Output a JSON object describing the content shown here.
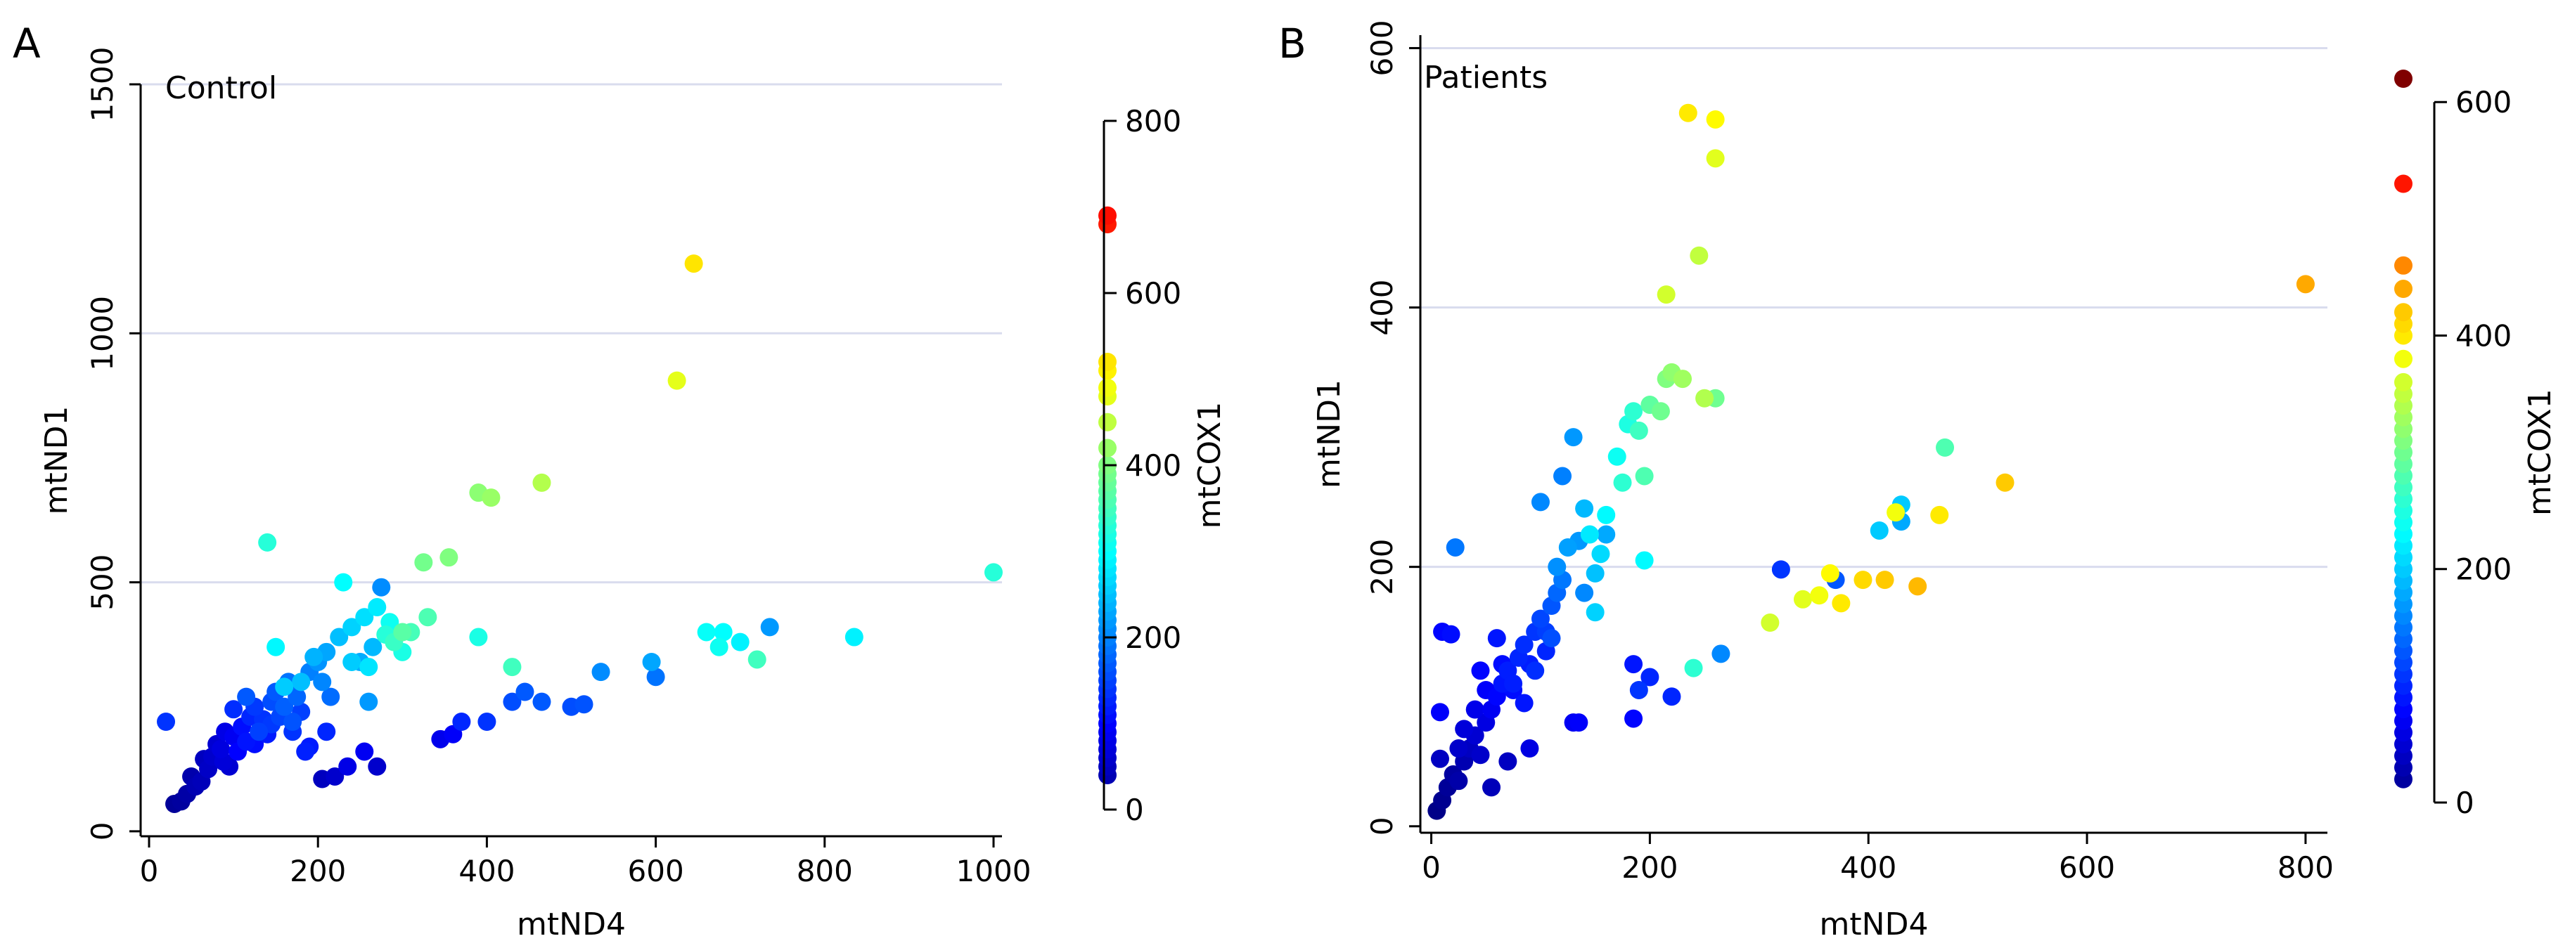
{
  "chart_data": [
    {
      "type": "scatter",
      "panel_label": "A",
      "title": "Control",
      "xlabel": "mtND4",
      "ylabel": "mtND1",
      "xlim": [
        -10,
        1010
      ],
      "ylim": [
        -10,
        1500
      ],
      "xticks": [
        0,
        200,
        400,
        600,
        800,
        1000
      ],
      "yticks": [
        0,
        500,
        1000,
        1500
      ],
      "grid_y": true,
      "colorbar": {
        "label": "mtCOX1",
        "ticks": [
          0,
          200,
          400,
          600,
          800
        ],
        "range": [
          0,
          800
        ],
        "colormap": "jet"
      },
      "points": [
        {
          "x": 30,
          "y": 55,
          "c": 20
        },
        {
          "x": 38,
          "y": 60,
          "c": 25
        },
        {
          "x": 45,
          "y": 75,
          "c": 30
        },
        {
          "x": 55,
          "y": 90,
          "c": 40
        },
        {
          "x": 50,
          "y": 110,
          "c": 35
        },
        {
          "x": 62,
          "y": 100,
          "c": 45
        },
        {
          "x": 70,
          "y": 125,
          "c": 55
        },
        {
          "x": 75,
          "y": 150,
          "c": 60
        },
        {
          "x": 80,
          "y": 175,
          "c": 65
        },
        {
          "x": 88,
          "y": 140,
          "c": 70
        },
        {
          "x": 90,
          "y": 200,
          "c": 80
        },
        {
          "x": 100,
          "y": 190,
          "c": 90
        },
        {
          "x": 105,
          "y": 160,
          "c": 100
        },
        {
          "x": 110,
          "y": 210,
          "c": 110
        },
        {
          "x": 115,
          "y": 180,
          "c": 115
        },
        {
          "x": 120,
          "y": 230,
          "c": 130
        },
        {
          "x": 125,
          "y": 250,
          "c": 145
        },
        {
          "x": 130,
          "y": 200,
          "c": 150
        },
        {
          "x": 135,
          "y": 225,
          "c": 140
        },
        {
          "x": 140,
          "y": 195,
          "c": 120
        },
        {
          "x": 145,
          "y": 260,
          "c": 160
        },
        {
          "x": 150,
          "y": 280,
          "c": 170
        },
        {
          "x": 155,
          "y": 230,
          "c": 155
        },
        {
          "x": 160,
          "y": 250,
          "c": 175
        },
        {
          "x": 165,
          "y": 300,
          "c": 190
        },
        {
          "x": 170,
          "y": 220,
          "c": 165
        },
        {
          "x": 175,
          "y": 270,
          "c": 180
        },
        {
          "x": 180,
          "y": 240,
          "c": 150
        },
        {
          "x": 185,
          "y": 160,
          "c": 125
        },
        {
          "x": 190,
          "y": 320,
          "c": 200
        },
        {
          "x": 200,
          "y": 340,
          "c": 215
        },
        {
          "x": 205,
          "y": 300,
          "c": 205
        },
        {
          "x": 210,
          "y": 360,
          "c": 230
        },
        {
          "x": 215,
          "y": 270,
          "c": 185
        },
        {
          "x": 225,
          "y": 390,
          "c": 250
        },
        {
          "x": 230,
          "y": 500,
          "c": 300
        },
        {
          "x": 240,
          "y": 410,
          "c": 265
        },
        {
          "x": 250,
          "y": 340,
          "c": 235
        },
        {
          "x": 255,
          "y": 430,
          "c": 275
        },
        {
          "x": 260,
          "y": 260,
          "c": 220
        },
        {
          "x": 265,
          "y": 370,
          "c": 245
        },
        {
          "x": 270,
          "y": 450,
          "c": 285
        },
        {
          "x": 275,
          "y": 490,
          "c": 210
        },
        {
          "x": 280,
          "y": 395,
          "c": 330
        },
        {
          "x": 290,
          "y": 380,
          "c": 345
        },
        {
          "x": 300,
          "y": 360,
          "c": 320
        },
        {
          "x": 310,
          "y": 400,
          "c": 355
        },
        {
          "x": 325,
          "y": 540,
          "c": 390
        },
        {
          "x": 330,
          "y": 430,
          "c": 360
        },
        {
          "x": 355,
          "y": 550,
          "c": 400
        },
        {
          "x": 140,
          "y": 580,
          "c": 330
        },
        {
          "x": 150,
          "y": 370,
          "c": 295
        },
        {
          "x": 20,
          "y": 220,
          "c": 140
        },
        {
          "x": 210,
          "y": 200,
          "c": 130
        },
        {
          "x": 190,
          "y": 170,
          "c": 120
        },
        {
          "x": 220,
          "y": 110,
          "c": 60
        },
        {
          "x": 235,
          "y": 130,
          "c": 80
        },
        {
          "x": 255,
          "y": 160,
          "c": 90
        },
        {
          "x": 270,
          "y": 130,
          "c": 60
        },
        {
          "x": 205,
          "y": 105,
          "c": 50
        },
        {
          "x": 345,
          "y": 185,
          "c": 85
        },
        {
          "x": 360,
          "y": 195,
          "c": 95
        },
        {
          "x": 370,
          "y": 220,
          "c": 130
        },
        {
          "x": 400,
          "y": 220,
          "c": 140
        },
        {
          "x": 430,
          "y": 260,
          "c": 160
        },
        {
          "x": 445,
          "y": 280,
          "c": 170
        },
        {
          "x": 465,
          "y": 260,
          "c": 170
        },
        {
          "x": 500,
          "y": 250,
          "c": 160
        },
        {
          "x": 515,
          "y": 255,
          "c": 165
        },
        {
          "x": 535,
          "y": 320,
          "c": 210
        },
        {
          "x": 595,
          "y": 340,
          "c": 230
        },
        {
          "x": 600,
          "y": 310,
          "c": 190
        },
        {
          "x": 660,
          "y": 400,
          "c": 305
        },
        {
          "x": 675,
          "y": 370,
          "c": 310
        },
        {
          "x": 680,
          "y": 400,
          "c": 300
        },
        {
          "x": 700,
          "y": 380,
          "c": 290
        },
        {
          "x": 720,
          "y": 345,
          "c": 350
        },
        {
          "x": 735,
          "y": 410,
          "c": 220
        },
        {
          "x": 835,
          "y": 390,
          "c": 290
        },
        {
          "x": 1000,
          "y": 520,
          "c": 330
        },
        {
          "x": 390,
          "y": 390,
          "c": 320
        },
        {
          "x": 390,
          "y": 680,
          "c": 410
        },
        {
          "x": 405,
          "y": 670,
          "c": 420
        },
        {
          "x": 430,
          "y": 330,
          "c": 350
        },
        {
          "x": 465,
          "y": 700,
          "c": 440
        },
        {
          "x": 625,
          "y": 905,
          "c": 480
        },
        {
          "x": 645,
          "y": 1140,
          "c": 520
        },
        {
          "x": 160,
          "y": 290,
          "c": 260
        },
        {
          "x": 180,
          "y": 300,
          "c": 250
        },
        {
          "x": 195,
          "y": 350,
          "c": 240
        },
        {
          "x": 115,
          "y": 270,
          "c": 170
        },
        {
          "x": 100,
          "y": 245,
          "c": 135
        },
        {
          "x": 85,
          "y": 165,
          "c": 75
        },
        {
          "x": 95,
          "y": 130,
          "c": 65
        },
        {
          "x": 65,
          "y": 145,
          "c": 50
        },
        {
          "x": 125,
          "y": 175,
          "c": 110
        },
        {
          "x": 145,
          "y": 215,
          "c": 145
        },
        {
          "x": 170,
          "y": 200,
          "c": 140
        },
        {
          "x": 240,
          "y": 340,
          "c": 260
        },
        {
          "x": 285,
          "y": 420,
          "c": 310
        },
        {
          "x": 300,
          "y": 400,
          "c": 370
        },
        {
          "x": 260,
          "y": 330,
          "c": 280
        }
      ],
      "colorbar_markers": [
        40,
        50,
        60,
        70,
        80,
        90,
        100,
        110,
        120,
        130,
        140,
        150,
        160,
        170,
        180,
        190,
        200,
        210,
        220,
        230,
        240,
        250,
        260,
        270,
        280,
        290,
        300,
        310,
        320,
        330,
        340,
        350,
        360,
        370,
        380,
        390,
        400,
        420,
        450,
        480,
        490,
        510,
        520,
        680,
        690
      ]
    },
    {
      "type": "scatter",
      "panel_label": "B",
      "title": "Patients",
      "xlabel": "mtND4",
      "ylabel": "mtND1",
      "xlim": [
        -10,
        820
      ],
      "ylim": [
        -5,
        610
      ],
      "xticks": [
        0,
        200,
        400,
        600,
        800
      ],
      "yticks": [
        0,
        200,
        400,
        600
      ],
      "grid_y": true,
      "colorbar": {
        "label": "mtCOX1",
        "ticks": [
          0,
          200,
          400,
          600
        ],
        "range": [
          0,
          620
        ],
        "colormap": "jet"
      },
      "points": [
        {
          "x": 5,
          "y": 12,
          "c": 5
        },
        {
          "x": 10,
          "y": 20,
          "c": 10
        },
        {
          "x": 15,
          "y": 30,
          "c": 15
        },
        {
          "x": 20,
          "y": 40,
          "c": 20
        },
        {
          "x": 25,
          "y": 35,
          "c": 25
        },
        {
          "x": 30,
          "y": 50,
          "c": 30
        },
        {
          "x": 35,
          "y": 60,
          "c": 40
        },
        {
          "x": 40,
          "y": 70,
          "c": 50
        },
        {
          "x": 45,
          "y": 55,
          "c": 45
        },
        {
          "x": 50,
          "y": 80,
          "c": 60
        },
        {
          "x": 55,
          "y": 90,
          "c": 70
        },
        {
          "x": 60,
          "y": 100,
          "c": 80
        },
        {
          "x": 65,
          "y": 110,
          "c": 90
        },
        {
          "x": 70,
          "y": 120,
          "c": 95
        },
        {
          "x": 75,
          "y": 105,
          "c": 85
        },
        {
          "x": 80,
          "y": 130,
          "c": 100
        },
        {
          "x": 85,
          "y": 140,
          "c": 105
        },
        {
          "x": 90,
          "y": 125,
          "c": 95
        },
        {
          "x": 95,
          "y": 150,
          "c": 110
        },
        {
          "x": 100,
          "y": 160,
          "c": 120
        },
        {
          "x": 105,
          "y": 135,
          "c": 100
        },
        {
          "x": 110,
          "y": 170,
          "c": 130
        },
        {
          "x": 115,
          "y": 180,
          "c": 140
        },
        {
          "x": 120,
          "y": 190,
          "c": 150
        },
        {
          "x": 10,
          "y": 150,
          "c": 80
        },
        {
          "x": 18,
          "y": 148,
          "c": 85
        },
        {
          "x": 22,
          "y": 215,
          "c": 150
        },
        {
          "x": 8,
          "y": 88,
          "c": 75
        },
        {
          "x": 8,
          "y": 52,
          "c": 40
        },
        {
          "x": 45,
          "y": 120,
          "c": 80
        },
        {
          "x": 60,
          "y": 145,
          "c": 90
        },
        {
          "x": 100,
          "y": 250,
          "c": 160
        },
        {
          "x": 120,
          "y": 270,
          "c": 155
        },
        {
          "x": 130,
          "y": 300,
          "c": 170
        },
        {
          "x": 135,
          "y": 220,
          "c": 170
        },
        {
          "x": 140,
          "y": 245,
          "c": 190
        },
        {
          "x": 150,
          "y": 195,
          "c": 195
        },
        {
          "x": 150,
          "y": 165,
          "c": 205
        },
        {
          "x": 155,
          "y": 210,
          "c": 210
        },
        {
          "x": 145,
          "y": 225,
          "c": 220
        },
        {
          "x": 160,
          "y": 240,
          "c": 230
        },
        {
          "x": 170,
          "y": 285,
          "c": 240
        },
        {
          "x": 180,
          "y": 310,
          "c": 250
        },
        {
          "x": 185,
          "y": 320,
          "c": 260
        },
        {
          "x": 190,
          "y": 305,
          "c": 270
        },
        {
          "x": 195,
          "y": 270,
          "c": 280
        },
        {
          "x": 200,
          "y": 325,
          "c": 290
        },
        {
          "x": 210,
          "y": 320,
          "c": 300
        },
        {
          "x": 215,
          "y": 345,
          "c": 310
        },
        {
          "x": 220,
          "y": 350,
          "c": 320
        },
        {
          "x": 230,
          "y": 345,
          "c": 330
        },
        {
          "x": 250,
          "y": 330,
          "c": 340
        },
        {
          "x": 260,
          "y": 330,
          "c": 300
        },
        {
          "x": 215,
          "y": 410,
          "c": 360
        },
        {
          "x": 245,
          "y": 440,
          "c": 350
        },
        {
          "x": 235,
          "y": 550,
          "c": 400
        },
        {
          "x": 260,
          "y": 545,
          "c": 390
        },
        {
          "x": 260,
          "y": 515,
          "c": 370
        },
        {
          "x": 175,
          "y": 265,
          "c": 260
        },
        {
          "x": 160,
          "y": 225,
          "c": 180
        },
        {
          "x": 195,
          "y": 205,
          "c": 230
        },
        {
          "x": 70,
          "y": 50,
          "c": 40
        },
        {
          "x": 55,
          "y": 30,
          "c": 35
        },
        {
          "x": 90,
          "y": 60,
          "c": 60
        },
        {
          "x": 130,
          "y": 80,
          "c": 70
        },
        {
          "x": 135,
          "y": 80,
          "c": 75
        },
        {
          "x": 185,
          "y": 83,
          "c": 80
        },
        {
          "x": 185,
          "y": 125,
          "c": 90
        },
        {
          "x": 200,
          "y": 115,
          "c": 100
        },
        {
          "x": 190,
          "y": 105,
          "c": 110
        },
        {
          "x": 220,
          "y": 100,
          "c": 100
        },
        {
          "x": 240,
          "y": 122,
          "c": 260
        },
        {
          "x": 265,
          "y": 133,
          "c": 160
        },
        {
          "x": 320,
          "y": 198,
          "c": 110
        },
        {
          "x": 370,
          "y": 190,
          "c": 130
        },
        {
          "x": 310,
          "y": 157,
          "c": 360
        },
        {
          "x": 340,
          "y": 175,
          "c": 370
        },
        {
          "x": 355,
          "y": 178,
          "c": 380
        },
        {
          "x": 365,
          "y": 195,
          "c": 390
        },
        {
          "x": 375,
          "y": 172,
          "c": 400
        },
        {
          "x": 395,
          "y": 190,
          "c": 410
        },
        {
          "x": 415,
          "y": 190,
          "c": 420
        },
        {
          "x": 445,
          "y": 185,
          "c": 430
        },
        {
          "x": 425,
          "y": 242,
          "c": 380
        },
        {
          "x": 410,
          "y": 228,
          "c": 200
        },
        {
          "x": 430,
          "y": 235,
          "c": 180
        },
        {
          "x": 430,
          "y": 248,
          "c": 200
        },
        {
          "x": 465,
          "y": 240,
          "c": 400
        },
        {
          "x": 470,
          "y": 292,
          "c": 280
        },
        {
          "x": 525,
          "y": 265,
          "c": 420
        },
        {
          "x": 800,
          "y": 418,
          "c": 440
        },
        {
          "x": 75,
          "y": 110,
          "c": 95
        },
        {
          "x": 85,
          "y": 95,
          "c": 90
        },
        {
          "x": 95,
          "y": 120,
          "c": 105
        },
        {
          "x": 105,
          "y": 150,
          "c": 115
        },
        {
          "x": 110,
          "y": 145,
          "c": 125
        },
        {
          "x": 40,
          "y": 90,
          "c": 65
        },
        {
          "x": 30,
          "y": 75,
          "c": 55
        },
        {
          "x": 25,
          "y": 60,
          "c": 45
        },
        {
          "x": 50,
          "y": 105,
          "c": 75
        },
        {
          "x": 65,
          "y": 125,
          "c": 85
        },
        {
          "x": 115,
          "y": 200,
          "c": 165
        },
        {
          "x": 125,
          "y": 215,
          "c": 175
        },
        {
          "x": 140,
          "y": 180,
          "c": 160
        }
      ],
      "colorbar_markers": [
        20,
        30,
        40,
        50,
        60,
        70,
        80,
        90,
        100,
        110,
        120,
        130,
        140,
        150,
        160,
        170,
        180,
        190,
        200,
        210,
        220,
        230,
        240,
        250,
        260,
        270,
        280,
        290,
        300,
        310,
        320,
        330,
        340,
        350,
        360,
        380,
        400,
        410,
        420,
        440,
        460,
        530,
        620
      ]
    }
  ]
}
